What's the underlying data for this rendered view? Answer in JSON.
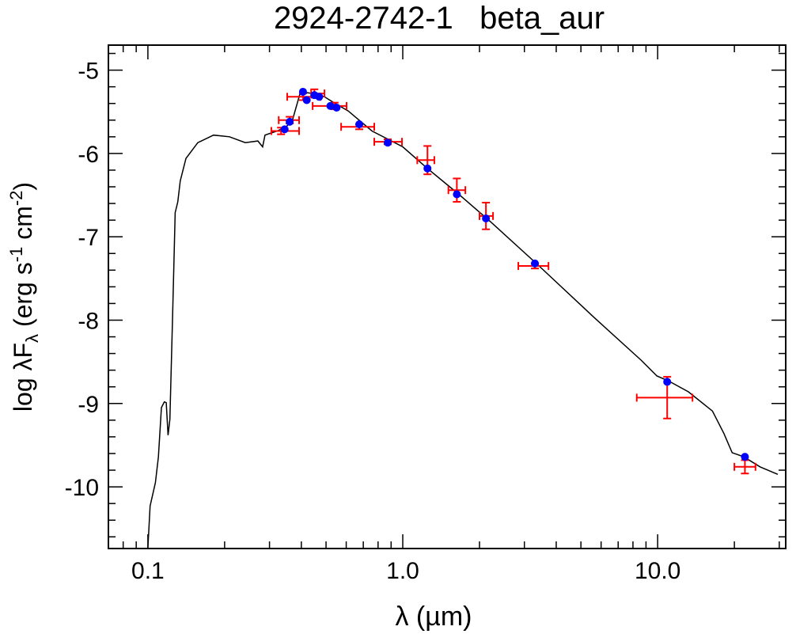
{
  "chart_data": {
    "type": "scatter",
    "title": "2924-2742-1   beta_aur",
    "xlabel": "λ (µm)",
    "ylabel": {
      "main": "log λF",
      "sub": "λ",
      "units_a": " (erg s",
      "sup1": "-1",
      "units_b": " cm",
      "sup2": "-2",
      "close": ")"
    },
    "xscale": "log",
    "xlim": [
      0.07,
      31.8
    ],
    "ylim": [
      -10.74,
      -4.7
    ],
    "xticks": [
      {
        "v": 0.1,
        "label": "0.1"
      },
      {
        "v": 1.0,
        "label": "1.0"
      },
      {
        "v": 10.0,
        "label": "10.0"
      }
    ],
    "yticks": [
      {
        "v": -5,
        "label": "-5"
      },
      {
        "v": -6,
        "label": "-6"
      },
      {
        "v": -7,
        "label": "-7"
      },
      {
        "v": -8,
        "label": "-8"
      },
      {
        "v": -9,
        "label": "-9"
      },
      {
        "v": -10,
        "label": "-10"
      }
    ],
    "colors": {
      "model": "#000000",
      "synthetic": "#0000ff",
      "observed": "#ff0000"
    },
    "model_curve": [
      [
        0.1,
        -10.73
      ],
      [
        0.102,
        -10.23
      ],
      [
        0.107,
        -9.95
      ],
      [
        0.11,
        -9.64
      ],
      [
        0.113,
        -9.05
      ],
      [
        0.116,
        -8.98
      ],
      [
        0.118,
        -8.99
      ],
      [
        0.12,
        -9.38
      ],
      [
        0.122,
        -9.19
      ],
      [
        0.125,
        -7.96
      ],
      [
        0.128,
        -6.71
      ],
      [
        0.131,
        -6.58
      ],
      [
        0.134,
        -6.33
      ],
      [
        0.141,
        -6.06
      ],
      [
        0.157,
        -5.87
      ],
      [
        0.181,
        -5.78
      ],
      [
        0.209,
        -5.8
      ],
      [
        0.241,
        -5.87
      ],
      [
        0.27,
        -5.85
      ],
      [
        0.282,
        -5.92
      ],
      [
        0.288,
        -5.78
      ],
      [
        0.321,
        -5.73
      ],
      [
        0.349,
        -5.68
      ],
      [
        0.37,
        -5.59
      ],
      [
        0.397,
        -5.26
      ],
      [
        0.443,
        -5.28
      ],
      [
        0.493,
        -5.32
      ],
      [
        0.53,
        -5.38
      ],
      [
        0.611,
        -5.49
      ],
      [
        0.757,
        -5.73
      ],
      [
        1.0,
        -5.92
      ],
      [
        1.25,
        -6.18
      ],
      [
        1.66,
        -6.49
      ],
      [
        2.21,
        -6.82
      ],
      [
        3.4,
        -7.34
      ],
      [
        5.6,
        -7.96
      ],
      [
        8.61,
        -8.48
      ],
      [
        9.93,
        -8.67
      ],
      [
        11.05,
        -8.73
      ],
      [
        13.2,
        -8.86
      ],
      [
        16.4,
        -9.09
      ],
      [
        18.2,
        -9.36
      ],
      [
        19.6,
        -9.59
      ],
      [
        21.8,
        -9.64
      ],
      [
        25.2,
        -9.76
      ],
      [
        29.6,
        -9.85
      ]
    ],
    "synthetic_photometry": [
      [
        0.344,
        -5.71
      ],
      [
        0.36,
        -5.62
      ],
      [
        0.406,
        -5.26
      ],
      [
        0.42,
        -5.36
      ],
      [
        0.45,
        -5.3
      ],
      [
        0.47,
        -5.32
      ],
      [
        0.52,
        -5.43
      ],
      [
        0.55,
        -5.45
      ],
      [
        0.675,
        -5.65
      ],
      [
        0.873,
        -5.87
      ],
      [
        1.25,
        -6.18
      ],
      [
        1.63,
        -6.49
      ],
      [
        2.12,
        -6.78
      ],
      [
        3.3,
        -7.32
      ],
      [
        10.9,
        -8.74
      ],
      [
        22.0,
        -9.64
      ]
    ],
    "observed": [
      {
        "x": 0.333,
        "y": -5.73,
        "xlo": 0.305,
        "xhi": 0.392,
        "yerr": 0.04
      },
      {
        "x": 0.36,
        "y": -5.6,
        "xlo": 0.326,
        "xhi": 0.392,
        "yerr": 0.04
      },
      {
        "x": 0.406,
        "y": -5.32,
        "xlo": 0.352,
        "xhi": 0.476,
        "yerr": 0.04
      },
      {
        "x": 0.45,
        "y": -5.28,
        "xlo": 0.437,
        "xhi": 0.493,
        "yerr": 0.05
      },
      {
        "x": 0.54,
        "y": -5.43,
        "xlo": 0.443,
        "xhi": 0.602,
        "yerr": 0.04
      },
      {
        "x": 0.675,
        "y": -5.68,
        "xlo": 0.573,
        "xhi": 0.773,
        "yerr": 0.03
      },
      {
        "x": 0.873,
        "y": -5.86,
        "xlo": 0.773,
        "xhi": 0.993,
        "yerr": 0.03
      },
      {
        "x": 1.25,
        "y": -6.08,
        "xlo": 1.14,
        "xhi": 1.33,
        "yerr": 0.17
      },
      {
        "x": 1.63,
        "y": -6.44,
        "xlo": 1.51,
        "xhi": 1.76,
        "yerr": 0.14
      },
      {
        "x": 2.12,
        "y": -6.75,
        "xlo": 2.0,
        "xhi": 2.26,
        "yerr": 0.16
      },
      {
        "x": 3.3,
        "y": -7.35,
        "xlo": 2.84,
        "xhi": 3.73,
        "yerr": 0.03
      },
      {
        "x": 10.9,
        "y": -8.93,
        "xlo": 8.28,
        "xhi": 13.7,
        "yerr": 0.25
      },
      {
        "x": 22.0,
        "y": -9.76,
        "xlo": 20.0,
        "xhi": 24.2,
        "yerr": 0.08
      }
    ]
  }
}
